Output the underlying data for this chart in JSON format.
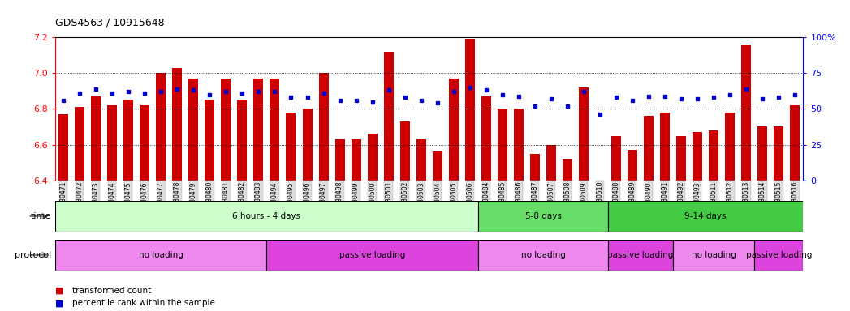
{
  "title": "GDS4563 / 10915648",
  "samples": [
    "GSM930471",
    "GSM930472",
    "GSM930473",
    "GSM930474",
    "GSM930475",
    "GSM930476",
    "GSM930477",
    "GSM930478",
    "GSM930479",
    "GSM930480",
    "GSM930481",
    "GSM930482",
    "GSM930483",
    "GSM930494",
    "GSM930495",
    "GSM930496",
    "GSM930497",
    "GSM930498",
    "GSM930499",
    "GSM930500",
    "GSM930501",
    "GSM930502",
    "GSM930503",
    "GSM930504",
    "GSM930505",
    "GSM930506",
    "GSM930484",
    "GSM930485",
    "GSM930486",
    "GSM930487",
    "GSM930507",
    "GSM930508",
    "GSM930509",
    "GSM930510",
    "GSM930488",
    "GSM930489",
    "GSM930490",
    "GSM930491",
    "GSM930492",
    "GSM930493",
    "GSM930511",
    "GSM930512",
    "GSM930513",
    "GSM930514",
    "GSM930515",
    "GSM930516"
  ],
  "bar_values": [
    6.77,
    6.81,
    6.87,
    6.82,
    6.85,
    6.82,
    7.0,
    7.03,
    6.97,
    6.85,
    6.97,
    6.85,
    6.97,
    6.97,
    6.78,
    6.8,
    7.0,
    6.63,
    6.63,
    6.66,
    7.12,
    6.73,
    6.63,
    6.56,
    6.97,
    7.19,
    6.87,
    6.8,
    6.8,
    6.55,
    6.6,
    6.52,
    6.92,
    6.4,
    6.65,
    6.57,
    6.76,
    6.78,
    6.65,
    6.67,
    6.68,
    6.78,
    7.16,
    6.7,
    6.7,
    6.82
  ],
  "percentile_values": [
    56,
    61,
    64,
    61,
    62,
    61,
    62,
    64,
    63,
    60,
    62,
    61,
    62,
    62,
    58,
    58,
    61,
    56,
    56,
    55,
    63,
    58,
    56,
    54,
    62,
    65,
    63,
    60,
    59,
    52,
    57,
    52,
    62,
    46,
    58,
    56,
    59,
    59,
    57,
    57,
    58,
    60,
    64,
    57,
    58,
    60
  ],
  "ylim": [
    6.4,
    7.2
  ],
  "yticks": [
    6.4,
    6.6,
    6.8,
    7.0,
    7.2
  ],
  "y2lim": [
    0,
    100
  ],
  "y2ticks": [
    0,
    25,
    50,
    75,
    100
  ],
  "bar_color": "#cc0000",
  "dot_color": "#0000cc",
  "bg_color": "#ffffff",
  "time_segments": [
    {
      "label": "6 hours - 4 days",
      "start": 0,
      "end": 26,
      "color": "#ccffcc"
    },
    {
      "label": "5-8 days",
      "start": 26,
      "end": 34,
      "color": "#66dd66"
    },
    {
      "label": "9-14 days",
      "start": 34,
      "end": 46,
      "color": "#44cc44"
    }
  ],
  "protocol_segments": [
    {
      "label": "no loading",
      "start": 0,
      "end": 13,
      "color": "#ee88ee"
    },
    {
      "label": "passive loading",
      "start": 13,
      "end": 26,
      "color": "#dd44dd"
    },
    {
      "label": "no loading",
      "start": 26,
      "end": 34,
      "color": "#ee88ee"
    },
    {
      "label": "passive loading",
      "start": 34,
      "end": 38,
      "color": "#dd44dd"
    },
    {
      "label": "no loading",
      "start": 38,
      "end": 43,
      "color": "#ee88ee"
    },
    {
      "label": "passive loading",
      "start": 43,
      "end": 46,
      "color": "#dd44dd"
    }
  ]
}
